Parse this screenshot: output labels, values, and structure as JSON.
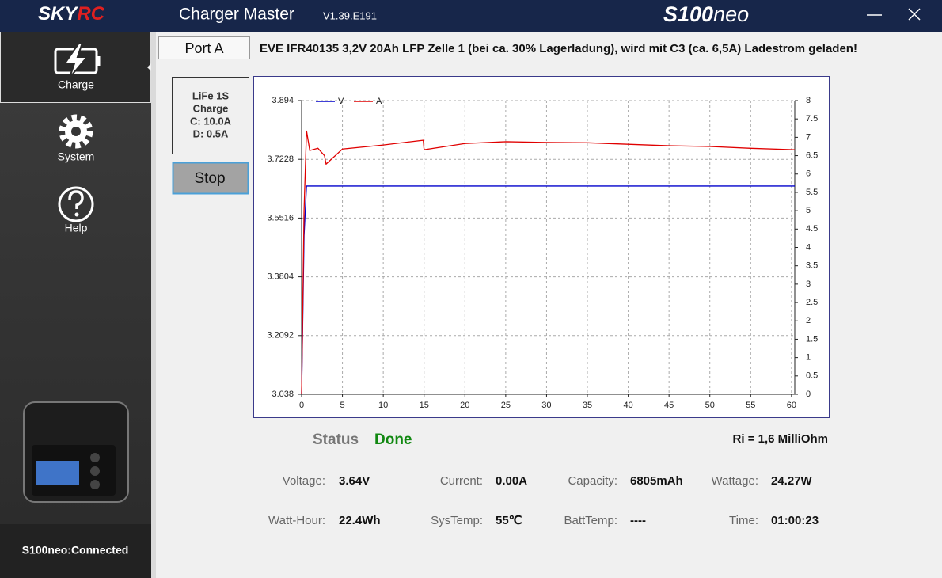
{
  "header": {
    "logo_main": "SKY",
    "logo_accent": "RC",
    "title": "Charger Master",
    "version": "V1.39.E191",
    "model": "S100",
    "model_suffix": "neo"
  },
  "sidebar": {
    "items": [
      "Charge",
      "System",
      "Help"
    ],
    "status": "S100neo:Connected"
  },
  "port": {
    "tab": "Port A",
    "description": "EVE IFR40135 3,2V 20Ah LFP Zelle 1 (bei ca. 30% Lagerladung), wird mit C3 (ca. 6,5A) Ladestrom geladen!",
    "program": [
      "LiFe 1S",
      "Charge",
      "C: 10.0A",
      "D: 0.5A"
    ],
    "button": "Stop"
  },
  "chart_data": {
    "type": "line",
    "x": [
      0,
      0.3,
      0.6,
      1,
      2,
      2.8,
      3,
      5,
      10,
      14.9,
      15,
      20,
      25,
      30,
      35,
      40,
      45,
      50,
      55,
      60.4
    ],
    "series": [
      {
        "name": "V",
        "color": "#0000cc",
        "values": [
          3.038,
          3.5,
          3.645,
          3.645,
          3.645,
          3.645,
          3.645,
          3.645,
          3.645,
          3.645,
          3.645,
          3.645,
          3.645,
          3.645,
          3.645,
          3.645,
          3.645,
          3.645,
          3.645,
          3.645
        ]
      },
      {
        "name": "A",
        "color": "#e00000",
        "axis": "y2",
        "values": [
          0,
          5.0,
          7.18,
          6.64,
          6.7,
          6.5,
          6.27,
          6.68,
          6.79,
          6.92,
          6.66,
          6.83,
          6.88,
          6.86,
          6.85,
          6.81,
          6.77,
          6.75,
          6.7,
          6.66
        ]
      }
    ],
    "xlim": [
      0,
      60.4
    ],
    "xticks": [
      0,
      5,
      10,
      15,
      20,
      25,
      30,
      35,
      40,
      45,
      50,
      55,
      60
    ],
    "ylim": [
      3.038,
      3.894
    ],
    "yticks": [
      3.038,
      3.2092,
      3.3804,
      3.5516,
      3.7228,
      3.894
    ],
    "y2lim": [
      0,
      8
    ],
    "y2ticks": [
      0,
      0.5,
      1,
      1.5,
      2,
      2.5,
      3,
      3.5,
      4,
      4.5,
      5,
      5.5,
      6,
      6.5,
      7,
      7.5,
      8
    ],
    "grid": true,
    "legend": "upper left"
  },
  "status": {
    "label": "Status",
    "value": "Done",
    "ri": "Ri = 1,6 MilliOhm"
  },
  "stats": [
    {
      "label": "Voltage:",
      "value": "3.64V"
    },
    {
      "label": "Current:",
      "value": "0.00A"
    },
    {
      "label": "Capacity:",
      "value": "6805mAh"
    },
    {
      "label": "Wattage:",
      "value": "24.27W"
    },
    {
      "label": "Watt-Hour:",
      "value": "22.4Wh"
    },
    {
      "label": "SysTemp:",
      "value": "55℃"
    },
    {
      "label": "BattTemp:",
      "value": "----"
    },
    {
      "label": "Time:",
      "value": "01:00:23"
    }
  ]
}
